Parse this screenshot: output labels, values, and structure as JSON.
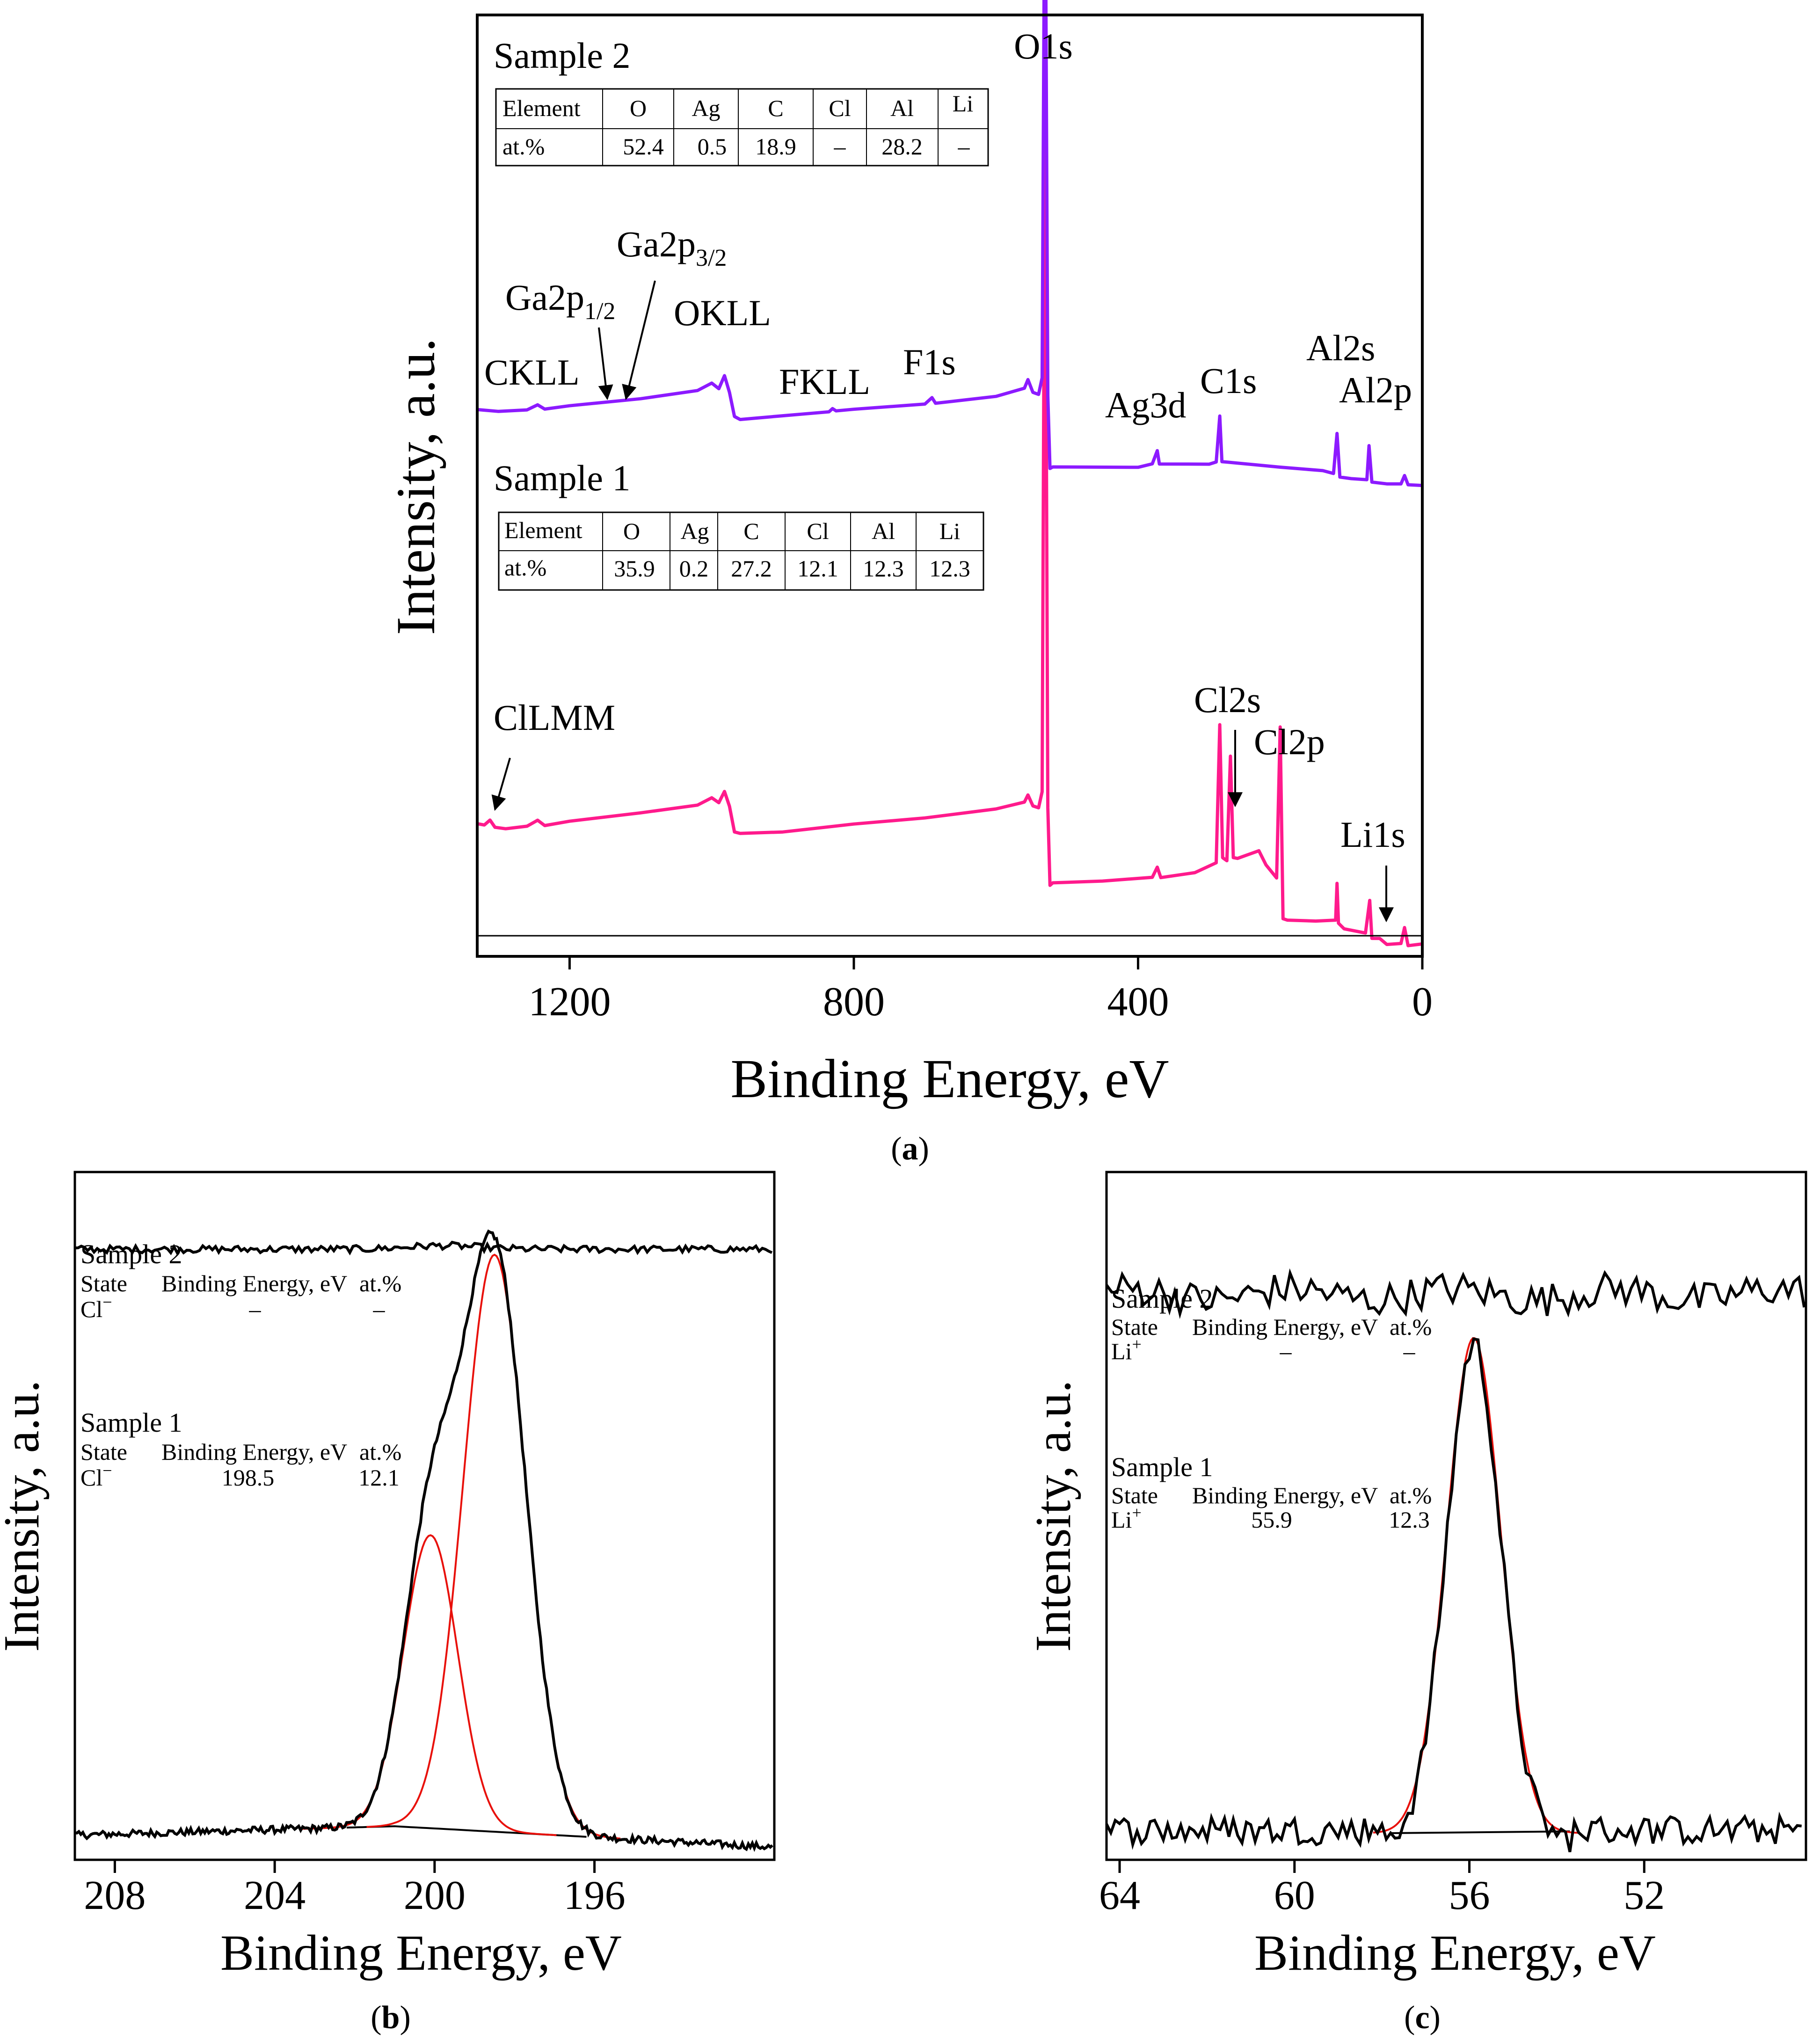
{
  "figure_captions": {
    "a_open": "(",
    "a_letter": "a",
    "a_close": ")",
    "b_open": "(",
    "b_letter": "b",
    "b_close": ")",
    "c_open": "(",
    "c_letter": "c",
    "c_close": ")"
  },
  "colors": {
    "sample1": "#ff1a8c",
    "sample2": "#8c1aff",
    "fit": "#e8100a",
    "spectrum": "#000000"
  },
  "chart_data": [
    {
      "id": "a",
      "type": "line",
      "xlabel": "Binding Energy, eV",
      "ylabel": "Intensity, a.u.",
      "xlim": [
        1330,
        0
      ],
      "xticks": [
        "1200",
        "800",
        "400",
        "0"
      ],
      "xtick_values": [
        1200,
        800,
        400,
        0
      ],
      "series": [
        {
          "name": "Sample 1",
          "color": "#ff1a8c",
          "points": [
            [
              1330,
              28
            ],
            [
              1320,
              24
            ],
            [
              1312,
              35
            ],
            [
              1305,
              22
            ],
            [
              1290,
              18
            ],
            [
              1260,
              23
            ],
            [
              1245,
              33
            ],
            [
              1235,
              25
            ],
            [
              1200,
              33
            ],
            [
              1100,
              50
            ],
            [
              1020,
              65
            ],
            [
              1000,
              78
            ],
            [
              990,
              70
            ],
            [
              982,
              90
            ],
            [
              975,
              62
            ],
            [
              968,
              10
            ],
            [
              960,
              7
            ],
            [
              900,
              12
            ],
            [
              800,
              28
            ],
            [
              700,
              40
            ],
            [
              600,
              55
            ],
            [
              560,
              70
            ],
            [
              555,
              85
            ],
            [
              548,
              62
            ],
            [
              540,
              58
            ],
            [
              535,
              90
            ],
            [
              531,
              1480
            ],
            [
              527,
              60
            ],
            [
              524,
              -95
            ],
            [
              520,
              -90
            ],
            [
              450,
              -85
            ],
            [
              380,
              -80
            ],
            [
              373,
              -60
            ],
            [
              368,
              -80
            ],
            [
              320,
              -70
            ],
            [
              290,
              -50
            ],
            [
              285,
              225
            ],
            [
              281,
              -40
            ],
            [
              275,
              -45
            ],
            [
              270,
              160
            ],
            [
              266,
              -40
            ],
            [
              260,
              -40
            ],
            [
              230,
              -25
            ],
            [
              220,
              -55
            ],
            [
              205,
              -80
            ],
            [
              200,
              220
            ],
            [
              196,
              -160
            ],
            [
              190,
              -165
            ],
            [
              150,
              -165
            ],
            [
              122,
              -165
            ],
            [
              120,
              -90
            ],
            [
              118,
              -170
            ],
            [
              110,
              -180
            ],
            [
              80,
              -190
            ],
            [
              74,
              -125
            ],
            [
              71,
              -200
            ],
            [
              60,
              -200
            ],
            [
              50,
              -210
            ],
            [
              30,
              -210
            ],
            [
              25,
              -180
            ],
            [
              20,
              -215
            ],
            [
              0,
              -212
            ]
          ]
        },
        {
          "name": "Sample 2",
          "color": "#8c1aff",
          "points": [
            [
              1330,
              28
            ],
            [
              1300,
              22
            ],
            [
              1260,
              26
            ],
            [
              1245,
              36
            ],
            [
              1235,
              28
            ],
            [
              1200,
              34
            ],
            [
              1100,
              50
            ],
            [
              1020,
              65
            ],
            [
              1000,
              80
            ],
            [
              990,
              70
            ],
            [
              982,
              95
            ],
            [
              975,
              62
            ],
            [
              968,
              12
            ],
            [
              960,
              8
            ],
            [
              900,
              15
            ],
            [
              835,
              23
            ],
            [
              830,
              30
            ],
            [
              825,
              24
            ],
            [
              800,
              28
            ],
            [
              700,
              40
            ],
            [
              690,
              50
            ],
            [
              685,
              40
            ],
            [
              600,
              55
            ],
            [
              560,
              70
            ],
            [
              555,
              85
            ],
            [
              548,
              62
            ],
            [
              540,
              58
            ],
            [
              535,
              90
            ],
            [
              531,
              1220
            ],
            [
              527,
              55
            ],
            [
              524,
              -90
            ],
            [
              520,
              -85
            ],
            [
              400,
              -85
            ],
            [
              380,
              -80
            ],
            [
              373,
              -55
            ],
            [
              370,
              -80
            ],
            [
              300,
              -80
            ],
            [
              290,
              -75
            ],
            [
              285,
              15
            ],
            [
              282,
              -75
            ],
            [
              275,
              -78
            ],
            [
              200,
              -85
            ],
            [
              140,
              -95
            ],
            [
              125,
              -100
            ],
            [
              120,
              -20
            ],
            [
              116,
              -105
            ],
            [
              100,
              -110
            ],
            [
              78,
              -110
            ],
            [
              75,
              -45
            ],
            [
              71,
              -115
            ],
            [
              50,
              -120
            ],
            [
              30,
              -120
            ],
            [
              25,
              -105
            ],
            [
              20,
              -122
            ],
            [
              0,
              -122
            ]
          ]
        }
      ],
      "peak_labels": {
        "o1s": "O1s",
        "ckll": "CKLL",
        "ga2p12_main": "Ga2p",
        "ga2p12_sub": "1/2",
        "ga2p32_main": "Ga2p",
        "ga2p32_sub": "3/2",
        "okll": "OKLL",
        "fkll": "FKLL",
        "f1s": "F1s",
        "ag3d": "Ag3d",
        "c1s": "C1s",
        "al2s": "Al2s",
        "al2p": "Al2p",
        "cllmm": "ClLMM",
        "cl2s": "Cl2s",
        "cl2p": "Cl2p",
        "li1s": "Li1s"
      },
      "sample_titles": {
        "s2": "Sample 2",
        "s1": "Sample 1"
      },
      "tables": {
        "sample2": {
          "headers": [
            "Element",
            "O",
            "Ag",
            "C",
            "Cl",
            "Al",
            "Li"
          ],
          "row": [
            "at.%",
            "52.4",
            "0.5",
            "18.9",
            "–",
            "28.2",
            "–"
          ]
        },
        "sample1": {
          "headers": [
            "Element",
            "O",
            "Ag",
            "C",
            "Cl",
            "Al",
            "Li"
          ],
          "row": [
            "at.%",
            "35.9",
            "0.2",
            "27.2",
            "12.1",
            "12.3",
            "12.3"
          ]
        }
      }
    },
    {
      "id": "b",
      "type": "line",
      "xlabel": "Binding Energy, eV",
      "ylabel": "Intensity, a.u.",
      "xlim": [
        209,
        191.5
      ],
      "xticks": [
        "208",
        "204",
        "200",
        "196"
      ],
      "xtick_values": [
        208,
        204,
        200,
        196
      ],
      "background": {
        "left_value": 0.02,
        "peak_at": 201,
        "peak_value": 0.035,
        "right_value": 0.0
      },
      "sample2_level": 1.0,
      "components": [
        {
          "center": 198.5,
          "height": 0.965,
          "sigma": 0.78,
          "color": "#e8100a"
        },
        {
          "center": 200.1,
          "height": 0.49,
          "sigma": 0.68,
          "color": "#e8100a"
        }
      ],
      "legend": {
        "s2_title": "Sample 2",
        "s2_cols": [
          "State",
          "Binding Energy, eV",
          "at.%"
        ],
        "s2_state": "Cl",
        "s2_sup": "−",
        "s2_be": "–",
        "s2_at": "–",
        "s1_title": "Sample 1",
        "s1_cols": [
          "State",
          "Binding Energy, eV",
          "at.%"
        ],
        "s1_state": "Cl",
        "s1_sup": "−",
        "s1_be": "198.5",
        "s1_at": "12.1"
      }
    },
    {
      "id": "c",
      "type": "line",
      "xlabel": "Binding Energy, eV",
      "ylabel": "Intensity, a.u.",
      "xlim": [
        64.3,
        48.3
      ],
      "xticks": [
        "64",
        "60",
        "56",
        "52"
      ],
      "xtick_values": [
        64,
        60,
        56,
        52
      ],
      "baseline": {
        "from": 57.8,
        "to": 53.7,
        "value": 0.0
      },
      "sample2_level": 0.93,
      "components": [
        {
          "center": 55.9,
          "height": 0.855,
          "sigma": 0.62,
          "color": "#e8100a"
        }
      ],
      "legend": {
        "s2_title": "Sample 2",
        "s2_cols": [
          "State",
          "Binding Energy, eV",
          "at.%"
        ],
        "s2_state": "Li",
        "s2_sup": "+",
        "s2_be": "–",
        "s2_at": "–",
        "s1_title": "Sample 1",
        "s1_cols": [
          "State",
          "Binding Energy, eV",
          "at.%"
        ],
        "s1_state": "Li",
        "s1_sup": "+",
        "s1_be": "55.9",
        "s1_at": "12.3"
      }
    }
  ]
}
